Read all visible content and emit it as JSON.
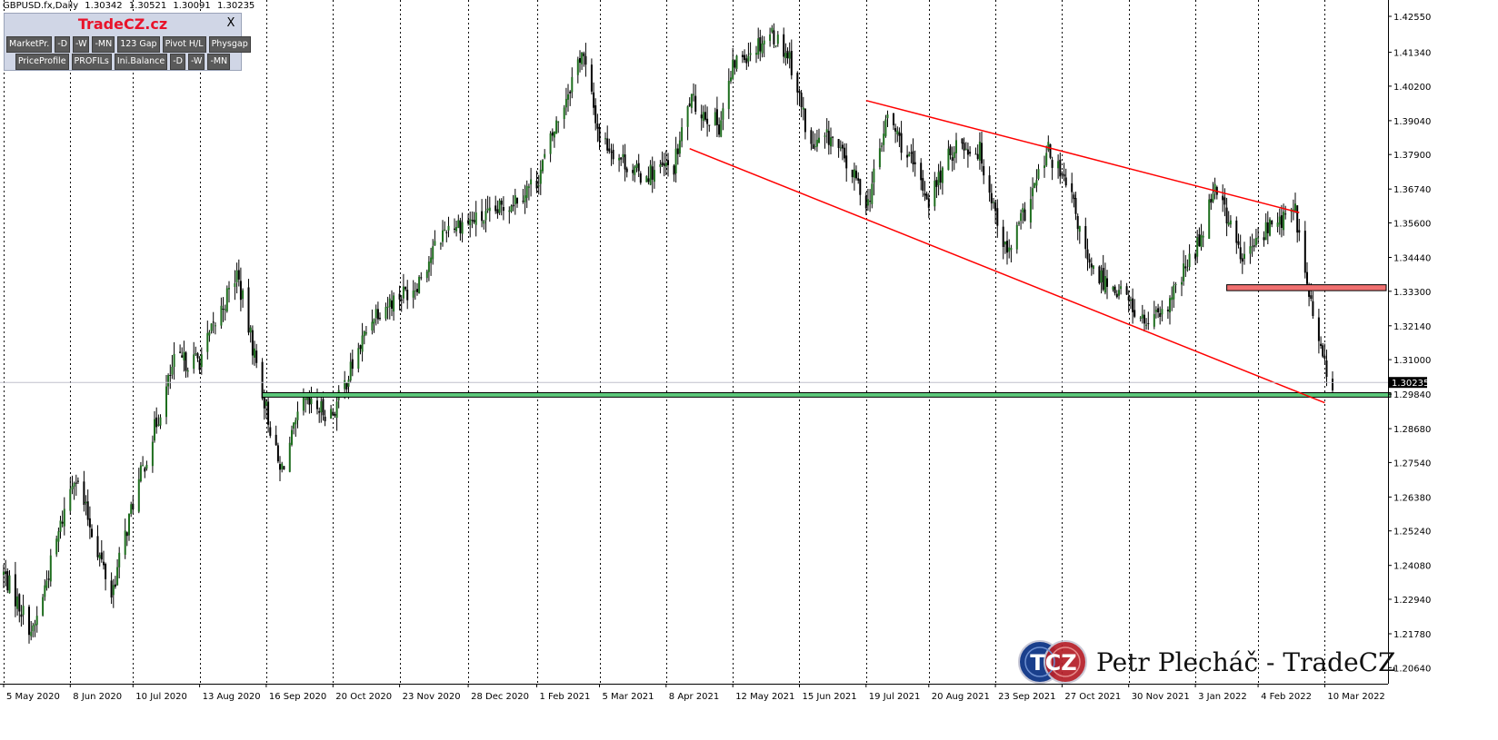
{
  "header": {
    "symbol": "GBPUSD.fx,Daily",
    "open": "1.30342",
    "high": "1.30521",
    "low": "1.30091",
    "close": "1.30235"
  },
  "panel": {
    "title": "TradeCZ.cz",
    "close_label": "X",
    "row1": [
      "MarketPr.",
      "-D",
      "-W",
      "-MN",
      "123 Gap",
      "Pivot H/L",
      "Physgap"
    ],
    "row2": [
      "PriceProfile",
      "PROFILs",
      "Ini.Balance",
      "-D",
      "-W",
      "-MN"
    ]
  },
  "watermark": {
    "logo_text": "TCZ",
    "text": "Petr Plecháč - TradeCZ"
  },
  "colors": {
    "bull_body": "#1e6e1e",
    "bear_body": "#000000",
    "wick": "#000000",
    "trendline": "#ff0000",
    "support_zone": "#5cc87a",
    "resistance_zone": "#f07070",
    "price_label_bg": "#000000",
    "grid": "#000000"
  },
  "chart_data": {
    "type": "candlestick",
    "symbol": "GBPUSD.fx",
    "timeframe": "Daily",
    "x_range": [
      "2020-05-05",
      "2022-03-14"
    ],
    "y_range": [
      1.201,
      1.431
    ],
    "y_ticks": [
      "1.42550",
      "1.41340",
      "1.40200",
      "1.39040",
      "1.37900",
      "1.36740",
      "1.35600",
      "1.34440",
      "1.33300",
      "1.32140",
      "1.31000",
      "1.29840",
      "1.28680",
      "1.27540",
      "1.26380",
      "1.25240",
      "1.24080",
      "1.22940",
      "1.21780",
      "1.20640"
    ],
    "x_tick_labels": [
      "5 May 2020",
      "8 Jun 2020",
      "10 Jul 2020",
      "13 Aug 2020",
      "16 Sep 2020",
      "20 Oct 2020",
      "23 Nov 2020",
      "28 Dec 2020",
      "1 Feb 2021",
      "5 Mar 2021",
      "8 Apr 2021",
      "12 May 2021",
      "15 Jun 2021",
      "19 Jul 2021",
      "20 Aug 2021",
      "23 Sep 2021",
      "27 Oct 2021",
      "30 Nov 2021",
      "3 Jan 2022",
      "4 Feb 2022",
      "10 Mar 2022"
    ],
    "grid": "vertical dotted",
    "current_price": "1.30235",
    "approx_close_path": [
      {
        "date": "2020-05-05",
        "close": 1.238
      },
      {
        "date": "2020-05-20",
        "close": 1.218
      },
      {
        "date": "2020-06-10",
        "close": 1.272
      },
      {
        "date": "2020-06-29",
        "close": 1.231
      },
      {
        "date": "2020-07-10",
        "close": 1.262
      },
      {
        "date": "2020-07-31",
        "close": 1.309
      },
      {
        "date": "2020-08-13",
        "close": 1.31
      },
      {
        "date": "2020-09-01",
        "close": 1.339
      },
      {
        "date": "2020-09-23",
        "close": 1.272
      },
      {
        "date": "2020-10-05",
        "close": 1.295
      },
      {
        "date": "2020-10-20",
        "close": 1.292
      },
      {
        "date": "2020-11-10",
        "close": 1.326
      },
      {
        "date": "2020-12-01",
        "close": 1.335
      },
      {
        "date": "2020-12-17",
        "close": 1.355
      },
      {
        "date": "2021-01-08",
        "close": 1.358
      },
      {
        "date": "2021-02-01",
        "close": 1.37
      },
      {
        "date": "2021-02-24",
        "close": 1.414
      },
      {
        "date": "2021-03-05",
        "close": 1.385
      },
      {
        "date": "2021-03-25",
        "close": 1.372
      },
      {
        "date": "2021-04-12",
        "close": 1.375
      },
      {
        "date": "2021-04-20",
        "close": 1.397
      },
      {
        "date": "2021-05-05",
        "close": 1.389
      },
      {
        "date": "2021-05-13",
        "close": 1.41
      },
      {
        "date": "2021-06-01",
        "close": 1.42
      },
      {
        "date": "2021-06-10",
        "close": 1.412
      },
      {
        "date": "2021-06-21",
        "close": 1.381
      },
      {
        "date": "2021-07-01",
        "close": 1.385
      },
      {
        "date": "2021-07-20",
        "close": 1.363
      },
      {
        "date": "2021-07-30",
        "close": 1.392
      },
      {
        "date": "2021-08-20",
        "close": 1.364
      },
      {
        "date": "2021-09-03",
        "close": 1.383
      },
      {
        "date": "2021-09-15",
        "close": 1.38
      },
      {
        "date": "2021-09-29",
        "close": 1.345
      },
      {
        "date": "2021-10-07",
        "close": 1.358
      },
      {
        "date": "2021-10-20",
        "close": 1.38
      },
      {
        "date": "2021-11-01",
        "close": 1.364
      },
      {
        "date": "2021-11-10",
        "close": 1.34
      },
      {
        "date": "2021-11-26",
        "close": 1.333
      },
      {
        "date": "2021-12-08",
        "close": 1.322
      },
      {
        "date": "2021-12-17",
        "close": 1.324
      },
      {
        "date": "2022-01-05",
        "close": 1.35
      },
      {
        "date": "2022-01-13",
        "close": 1.37
      },
      {
        "date": "2022-01-27",
        "close": 1.343
      },
      {
        "date": "2022-02-08",
        "close": 1.354
      },
      {
        "date": "2022-02-23",
        "close": 1.36
      },
      {
        "date": "2022-03-01",
        "close": 1.335
      },
      {
        "date": "2022-03-08",
        "close": 1.312
      },
      {
        "date": "2022-03-14",
        "close": 1.30235
      }
    ],
    "trendlines": [
      {
        "name": "upper channel line",
        "from": {
          "date": "2021-07-19",
          "price": 1.3972
        },
        "to": {
          "date": "2022-02-25",
          "price": 1.3595
        }
      },
      {
        "name": "lower channel line",
        "from": {
          "date": "2021-04-20",
          "price": 1.381
        },
        "to": {
          "date": "2022-03-10",
          "price": 1.2955
        }
      }
    ],
    "zones": [
      {
        "name": "resistance zone",
        "from_date": "2022-01-19",
        "y_low": 1.3332,
        "y_high": 1.3352
      },
      {
        "name": "support zone",
        "from_date": "2020-09-14",
        "y_low": 1.2974,
        "y_high": 1.2989
      }
    ]
  }
}
